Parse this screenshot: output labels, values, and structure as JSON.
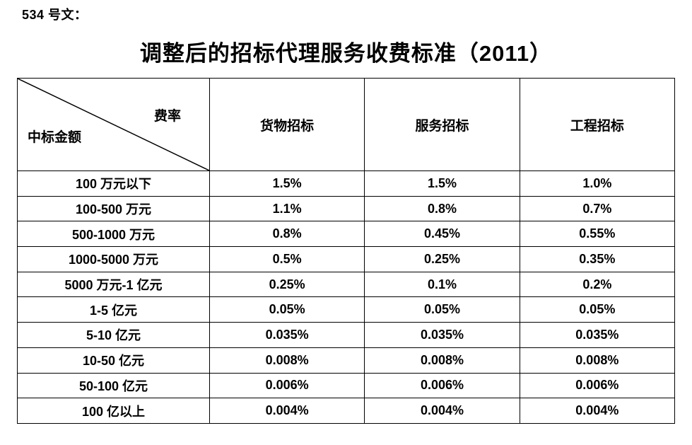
{
  "page": {
    "doc_label": "534 号文：",
    "title": "调整后的招标代理服务收费标准（2011）"
  },
  "table": {
    "corner": {
      "top_right": "费率",
      "bottom_left": "中标金额"
    },
    "columns": [
      "货物招标",
      "服务招标",
      "工程招标"
    ],
    "rows": [
      {
        "label": "100 万元以下",
        "values": [
          "1.5%",
          "1.5%",
          "1.0%"
        ]
      },
      {
        "label": "100-500 万元",
        "values": [
          "1.1%",
          "0.8%",
          "0.7%"
        ]
      },
      {
        "label": "500-1000 万元",
        "values": [
          "0.8%",
          "0.45%",
          "0.55%"
        ]
      },
      {
        "label": "1000-5000 万元",
        "values": [
          "0.5%",
          "0.25%",
          "0.35%"
        ]
      },
      {
        "label": "5000 万元-1 亿元",
        "values": [
          "0.25%",
          "0.1%",
          "0.2%"
        ]
      },
      {
        "label": "1-5 亿元",
        "values": [
          "0.05%",
          "0.05%",
          "0.05%"
        ]
      },
      {
        "label": "5-10 亿元",
        "values": [
          "0.035%",
          "0.035%",
          "0.035%"
        ]
      },
      {
        "label": "10-50 亿元",
        "values": [
          "0.008%",
          "0.008%",
          "0.008%"
        ]
      },
      {
        "label": "50-100 亿元",
        "values": [
          "0.006%",
          "0.006%",
          "0.006%"
        ]
      },
      {
        "label": "100 亿以上",
        "values": [
          "0.004%",
          "0.004%",
          "0.004%"
        ]
      }
    ],
    "colors": {
      "text": "#000000",
      "border": "#000000",
      "background": "#ffffff"
    }
  }
}
